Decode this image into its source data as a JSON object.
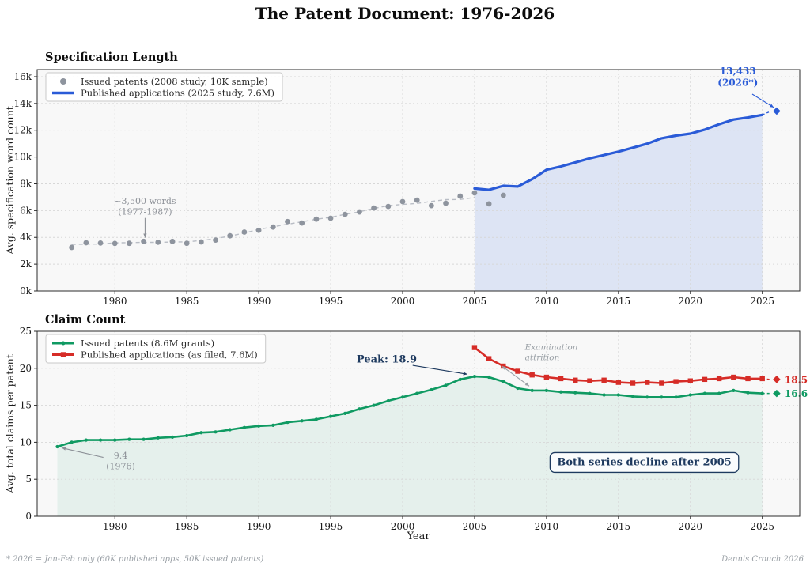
{
  "page": {
    "title": "The Patent Document: 1976-2026",
    "footnote_left": "* 2026 = Jan-Feb only (60K published apps, 50K issued patents)",
    "footnote_right": "Dennis Crouch 2026"
  },
  "chart_data": [
    {
      "id": "specification-length",
      "type": "line",
      "title": "Specification Length",
      "xlabel": "",
      "ylabel": "Avg. specification word count",
      "xlim": [
        1974.6,
        2027.6
      ],
      "ylim": [
        0,
        16530
      ],
      "grid": true,
      "legend_position": "upper-left",
      "plot_bg": "#f8f8f8",
      "xticks": [
        1980,
        1985,
        1990,
        1995,
        2000,
        2005,
        2010,
        2015,
        2020,
        2025
      ],
      "yticks": {
        "values": [
          0,
          2000,
          4000,
          6000,
          8000,
          10000,
          12000,
          14000,
          16000
        ],
        "labels": [
          "0k",
          "2k",
          "4k",
          "6k",
          "8k",
          "10k",
          "12k",
          "14k",
          "16k"
        ]
      },
      "series": [
        {
          "name": "Issued patents (2008 study, 10K sample)",
          "slug": "issued-patents-scatter",
          "type": "scatter",
          "color": "#8e949e",
          "trend": true,
          "trend_end": 2005,
          "trend_color": "#b9bdc5",
          "x": [
            1977,
            1978,
            1979,
            1980,
            1981,
            1982,
            1983,
            1984,
            1985,
            1986,
            1987,
            1988,
            1989,
            1990,
            1991,
            1992,
            1993,
            1994,
            1995,
            1996,
            1997,
            1998,
            1999,
            2000,
            2001,
            2002,
            2003,
            2004,
            2005,
            2006,
            2007
          ],
          "y": [
            3250,
            3600,
            3580,
            3550,
            3560,
            3700,
            3640,
            3700,
            3560,
            3660,
            3800,
            4120,
            4400,
            4530,
            4770,
            5180,
            5070,
            5360,
            5430,
            5720,
            5900,
            6190,
            6310,
            6670,
            6780,
            6370,
            6550,
            7080,
            7320,
            6500,
            7140
          ]
        },
        {
          "name": "Published applications (2025 study, 7.6M)",
          "slug": "published-apps-line",
          "type": "line",
          "color": "#2a5bd7",
          "width": 3.2,
          "legend_lw": 3.5,
          "fill_color": "rgba(42,91,215,0.13)",
          "x": [
            2005,
            2006,
            2007,
            2008,
            2009,
            2010,
            2011,
            2012,
            2013,
            2014,
            2015,
            2016,
            2017,
            2018,
            2019,
            2020,
            2021,
            2022,
            2023,
            2024,
            2025
          ],
          "y": [
            7650,
            7550,
            7850,
            7800,
            8350,
            9050,
            9300,
            9600,
            9900,
            10150,
            10400,
            10700,
            11000,
            11400,
            11600,
            11750,
            12050,
            12450,
            12800,
            12950,
            13150
          ],
          "projection": {
            "x": 2026,
            "y": 13433
          }
        }
      ],
      "annotations": [
        {
          "name": "flat-era",
          "lines": [
            "~3,500 words",
            "(1977-1987)"
          ],
          "color": "#8c9097",
          "size": 11,
          "x": 1982.1,
          "y": 6490,
          "arrow": {
            "x1": 1982.1,
            "y1": 5450,
            "x2": 1982.1,
            "y2": 3980
          }
        },
        {
          "name": "projection-2026",
          "lines": [
            "13,433",
            "(2026*)"
          ],
          "color": "#2a5bd7",
          "bold": true,
          "size": 12,
          "x": 2023.3,
          "y": 16180,
          "arrow": {
            "x1": 2024.3,
            "y1": 14700,
            "x2": 2025.8,
            "y2": 13700
          }
        }
      ]
    },
    {
      "id": "claim-count",
      "type": "line",
      "title": "Claim Count",
      "xlabel": "Year",
      "ylabel": "Avg. total claims per patent",
      "xlim": [
        1974.6,
        2027.6
      ],
      "ylim": [
        0,
        25
      ],
      "grid": true,
      "legend_position": "upper-left",
      "plot_bg": "#f8f8f8",
      "xticks": [
        1980,
        1985,
        1990,
        1995,
        2000,
        2005,
        2010,
        2015,
        2020,
        2025
      ],
      "yticks": {
        "values": [
          0,
          5,
          10,
          15,
          20,
          25
        ],
        "labels": [
          "0",
          "5",
          "10",
          "15",
          "20",
          "25"
        ]
      },
      "series": [
        {
          "name": "Issued patents (8.6M grants)",
          "slug": "issued-patents-line",
          "type": "line",
          "marker": "circle",
          "color": "#0f9a62",
          "width": 2.6,
          "legend_lw": 3,
          "fill_color": "rgba(15,154,98,0.08)",
          "x": [
            1976,
            1977,
            1978,
            1979,
            1980,
            1981,
            1982,
            1983,
            1984,
            1985,
            1986,
            1987,
            1988,
            1989,
            1990,
            1991,
            1992,
            1993,
            1994,
            1995,
            1996,
            1997,
            1998,
            1999,
            2000,
            2001,
            2002,
            2003,
            2004,
            2005,
            2006,
            2007,
            2008,
            2009,
            2010,
            2011,
            2012,
            2013,
            2014,
            2015,
            2016,
            2017,
            2018,
            2019,
            2020,
            2021,
            2022,
            2023,
            2024,
            2025
          ],
          "y": [
            9.4,
            10.0,
            10.3,
            10.3,
            10.3,
            10.4,
            10.4,
            10.6,
            10.7,
            10.9,
            11.3,
            11.4,
            11.7,
            12.0,
            12.2,
            12.3,
            12.7,
            12.9,
            13.1,
            13.5,
            13.9,
            14.5,
            15.0,
            15.6,
            16.1,
            16.6,
            17.1,
            17.7,
            18.5,
            18.9,
            18.8,
            18.2,
            17.3,
            17.0,
            17.0,
            16.8,
            16.7,
            16.6,
            16.4,
            16.4,
            16.2,
            16.1,
            16.1,
            16.1,
            16.4,
            16.6,
            16.6,
            17.0,
            16.7,
            16.6
          ],
          "projection": {
            "x": 2026,
            "y": 16.6,
            "label": "16.6"
          }
        },
        {
          "name": "Published applications (as filed, 7.6M)",
          "slug": "published-apps-filed-line",
          "type": "line",
          "marker": "square",
          "color": "#d62c27",
          "width": 2.6,
          "legend_lw": 3,
          "x": [
            2005,
            2006,
            2007,
            2008,
            2009,
            2010,
            2011,
            2012,
            2013,
            2014,
            2015,
            2016,
            2017,
            2018,
            2019,
            2020,
            2021,
            2022,
            2023,
            2024,
            2025
          ],
          "y": [
            22.8,
            21.3,
            20.3,
            19.6,
            19.1,
            18.8,
            18.6,
            18.4,
            18.3,
            18.4,
            18.1,
            18.0,
            18.1,
            18.0,
            18.2,
            18.3,
            18.5,
            18.6,
            18.8,
            18.6,
            18.6
          ],
          "projection": {
            "x": 2026,
            "y": 18.5,
            "label": "18.5"
          }
        }
      ],
      "annotations": [
        {
          "name": "peak",
          "lines": [
            "Peak: 18.9"
          ],
          "color": "#1e3a5f",
          "bold": true,
          "size": 13,
          "x": 1998.9,
          "y": 20.8,
          "arrow": {
            "x1": 2000.7,
            "y1": 20.4,
            "x2": 2004.5,
            "y2": 19.2,
            "color": "#1e3a5f"
          }
        },
        {
          "name": "examination-attrition",
          "lines": [
            "Examination",
            "attrition"
          ],
          "color": "#9aa0a6",
          "italic": true,
          "size": 10.5,
          "align": "left",
          "x": 2008.5,
          "y": 22.5,
          "arrow": {
            "x1": 2006.9,
            "y1": 20.3,
            "x2": 2008.8,
            "y2": 17.6,
            "color": "#9aa0a6",
            "double": true
          }
        },
        {
          "name": "start-value",
          "lines": [
            "9.4",
            "(1976)"
          ],
          "color": "#8c9097",
          "size": 11,
          "x": 1980.4,
          "y": 7.8,
          "arrow": {
            "x1": 1979.2,
            "y1": 7.95,
            "x2": 1976.3,
            "y2": 9.25,
            "color": "#8c9097"
          }
        },
        {
          "name": "decline-note",
          "lines": [
            "Both series decline after 2005"
          ],
          "color": "#1e3a5f",
          "bold": true,
          "size": 13,
          "box": true,
          "x": 2016.8,
          "y": 6.9
        }
      ]
    }
  ]
}
